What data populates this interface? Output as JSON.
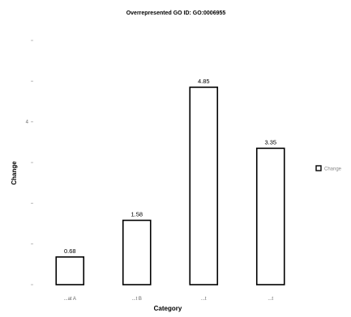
{
  "chart_data": {
    "type": "bar",
    "title": "Overrepresented GO ID: GO:0006955",
    "xlabel": "Category",
    "ylabel": "Change",
    "categories": [
      "...at A",
      "...t B",
      "...t",
      "...t"
    ],
    "values": [
      0.68,
      1.58,
      4.85,
      3.35
    ],
    "data_labels": [
      "0.68",
      "1.58",
      "4.85",
      "3.35"
    ],
    "ylim": [
      0,
      6
    ],
    "yticks": [
      0,
      1,
      2,
      3,
      4,
      5,
      6
    ],
    "ytick_labels": [
      "",
      "",
      "",
      "",
      "4",
      "",
      ""
    ],
    "grid": false,
    "legend": {
      "placement": "right",
      "entries": [
        "Change"
      ]
    },
    "colors": {
      "bar_fill": "#ffffff",
      "bar_stroke": "#000000",
      "text": "#000000"
    }
  }
}
